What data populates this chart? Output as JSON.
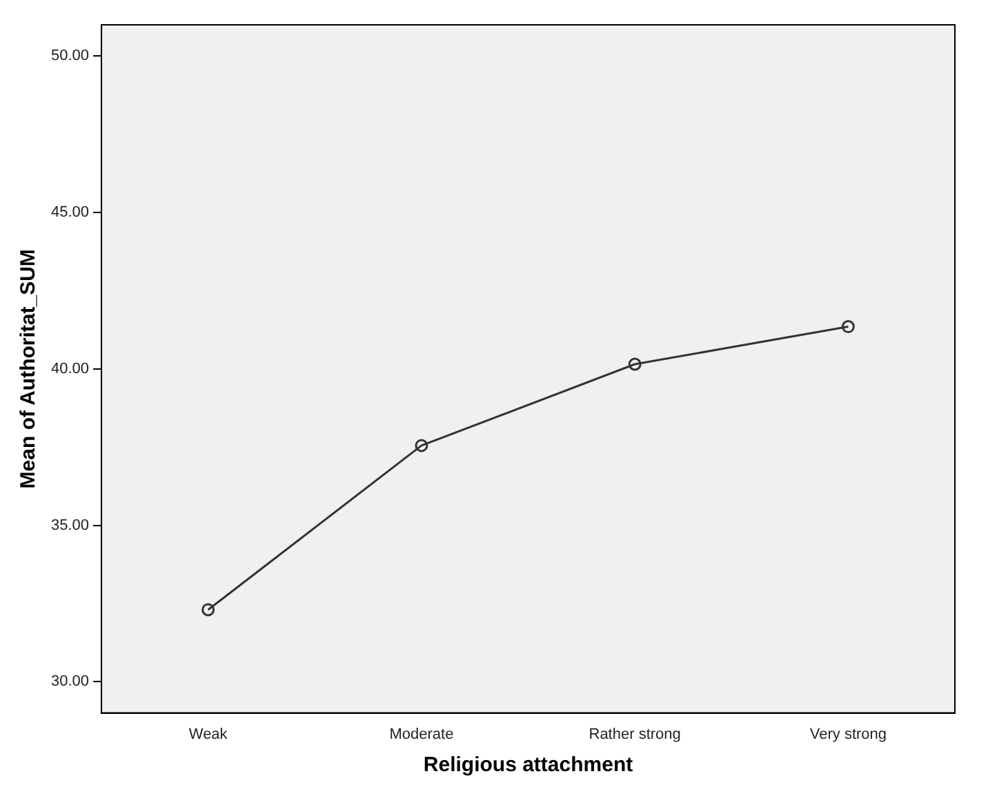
{
  "chart_data": {
    "type": "line",
    "xlabel": "Religious attachment",
    "ylabel": "Mean of Authoritat_SUM",
    "categories": [
      "Weak",
      "Moderate",
      "Rather strong",
      "Very strong"
    ],
    "series": [
      {
        "color": "#333333",
        "values": [
          32.3,
          37.55,
          40.15,
          41.35
        ]
      }
    ],
    "ylim": [
      29,
      51
    ],
    "yticks": [
      {
        "value": 30,
        "label": "30.00"
      },
      {
        "value": 35,
        "label": "35.00"
      },
      {
        "value": 40,
        "label": "40.00"
      },
      {
        "value": 45,
        "label": "45.00"
      },
      {
        "value": 50,
        "label": "50.00"
      }
    ],
    "grid": false,
    "legend": false,
    "marker": "circle",
    "line_style": "solid"
  }
}
